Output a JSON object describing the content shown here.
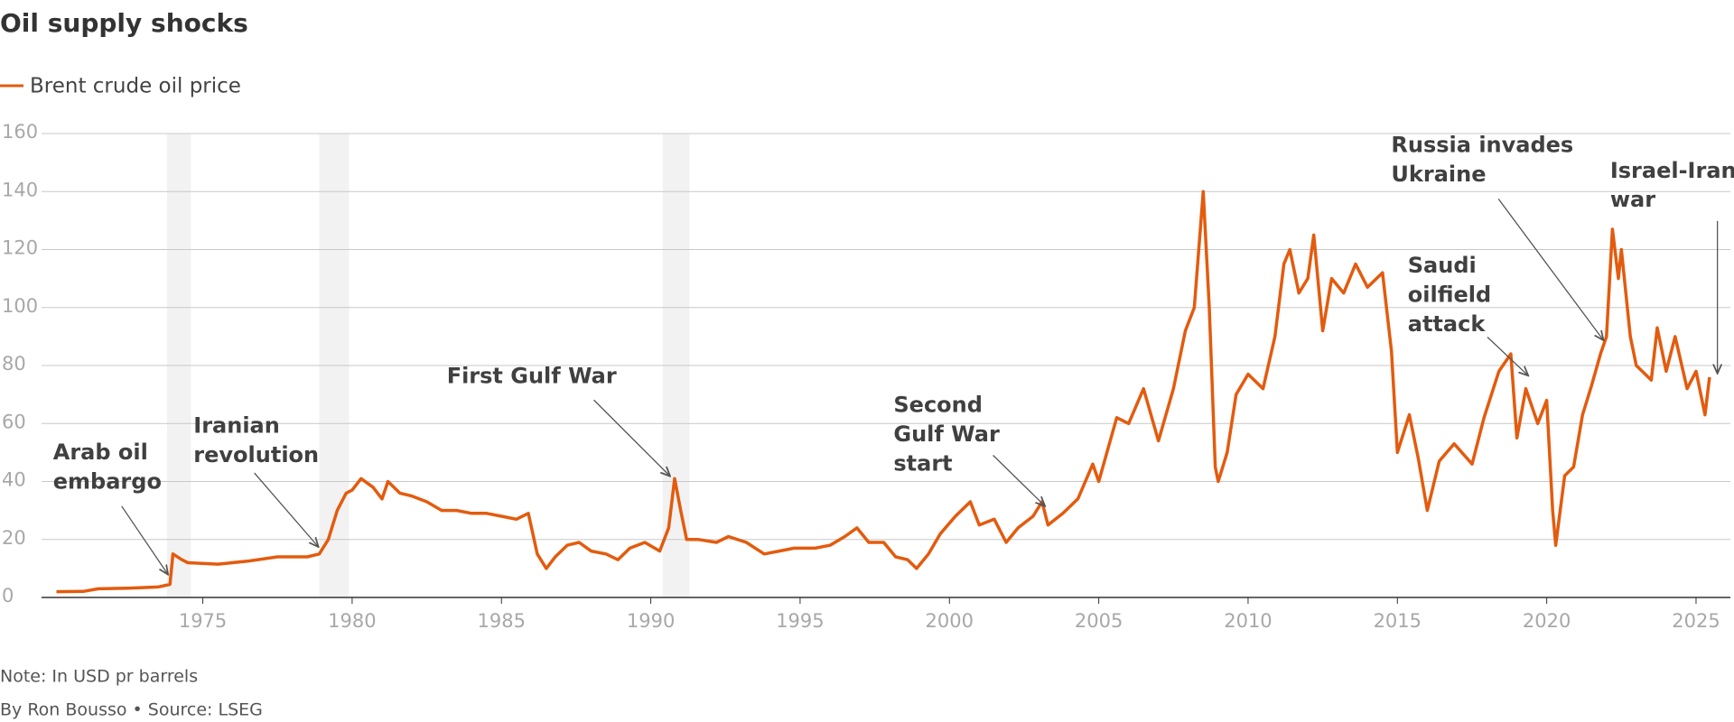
{
  "chart_data": {
    "type": "line",
    "title": "Oil supply shocks",
    "note": "Note: In USD pr barrels",
    "source": "By Ron Bousso • Source: LSEG",
    "xlim": [
      1969.6,
      2026.15
    ],
    "xticks": [
      1975,
      1980,
      1985,
      1990,
      1995,
      2000,
      2005,
      2010,
      2015,
      2020,
      2025
    ],
    "ylim": [
      0,
      160
    ],
    "yticks": [
      0,
      20,
      40,
      60,
      80,
      100,
      120,
      140,
      160
    ],
    "grid": true,
    "shaded_periods": [
      [
        1973.8,
        1974.6
      ],
      [
        1978.9,
        1979.9
      ],
      [
        1990.4,
        1991.3
      ]
    ],
    "annotations": [
      {
        "lines": [
          "Arab oil",
          "embargo"
        ]
      },
      {
        "lines": [
          "Iranian",
          "revolution"
        ]
      },
      {
        "lines": [
          "First Gulf War"
        ]
      },
      {
        "lines": [
          "Second",
          "Gulf War",
          "start"
        ]
      },
      {
        "lines": [
          "Saudi",
          "oilfield",
          "attack"
        ]
      },
      {
        "lines": [
          "Russia invades",
          "Ukraine"
        ]
      },
      {
        "lines": [
          "Israel-Iran",
          "war"
        ]
      }
    ],
    "x": [
      1970.1,
      1971.0,
      1971.5,
      1972.5,
      1973.5,
      1973.9,
      1974.0,
      1974.3,
      1974.5,
      1975.5,
      1976.5,
      1977.5,
      1978.5,
      1978.9,
      1979.2,
      1979.5,
      1979.8,
      1980.0,
      1980.3,
      1980.7,
      1981.0,
      1981.2,
      1981.6,
      1982.0,
      1982.5,
      1983.0,
      1983.5,
      1984.0,
      1984.5,
      1985.0,
      1985.5,
      1985.9,
      1986.2,
      1986.5,
      1986.8,
      1987.2,
      1987.6,
      1988.0,
      1988.5,
      1988.9,
      1989.3,
      1989.8,
      1990.3,
      1990.6,
      1990.8,
      1991.0,
      1991.2,
      1991.6,
      1992.2,
      1992.6,
      1993.2,
      1993.8,
      1994.3,
      1994.8,
      1995.5,
      1996.0,
      1996.5,
      1996.9,
      1997.3,
      1997.8,
      1998.2,
      1998.6,
      1998.9,
      1999.3,
      1999.7,
      2000.2,
      2000.7,
      2001.0,
      2001.5,
      2001.9,
      2002.3,
      2002.8,
      2003.1,
      2003.3,
      2003.8,
      2004.3,
      2004.8,
      2005.0,
      2005.6,
      2006.0,
      2006.5,
      2007.0,
      2007.5,
      2007.9,
      2008.2,
      2008.5,
      2008.7,
      2008.9,
      2009.0,
      2009.3,
      2009.6,
      2010.0,
      2010.5,
      2010.9,
      2011.2,
      2011.4,
      2011.7,
      2012.0,
      2012.2,
      2012.5,
      2012.8,
      2013.2,
      2013.6,
      2014.0,
      2014.5,
      2014.8,
      2015.0,
      2015.4,
      2015.7,
      2016.0,
      2016.4,
      2016.9,
      2017.5,
      2017.9,
      2018.4,
      2018.8,
      2019.0,
      2019.3,
      2019.7,
      2020.0,
      2020.2,
      2020.3,
      2020.6,
      2020.9,
      2021.2,
      2021.5,
      2021.8,
      2022.0,
      2022.2,
      2022.4,
      2022.5,
      2022.8,
      2023.0,
      2023.5,
      2023.7,
      2024.0,
      2024.3,
      2024.7,
      2025.0,
      2025.3,
      2025.45
    ],
    "series": [
      {
        "name": "Brent crude oil price",
        "color": "#e35b0e",
        "values": [
          2,
          2.1,
          3,
          3.2,
          3.6,
          4.5,
          15,
          13,
          12,
          11.5,
          12.5,
          14,
          14,
          15,
          20,
          30,
          36,
          37,
          41,
          38,
          34,
          40,
          36,
          35,
          33,
          30,
          30,
          29,
          29,
          28,
          27,
          29,
          15,
          10,
          14,
          18,
          19,
          16,
          15,
          13,
          17,
          19,
          16,
          24,
          41,
          30,
          20,
          20,
          19,
          21,
          19,
          15,
          16,
          17,
          17,
          18,
          21,
          24,
          19,
          19,
          14,
          13,
          10,
          15,
          22,
          28,
          33,
          25,
          27,
          19,
          24,
          28,
          33,
          25,
          29,
          34,
          46,
          40,
          62,
          60,
          72,
          54,
          72,
          92,
          100,
          140,
          100,
          45,
          40,
          50,
          70,
          77,
          72,
          90,
          115,
          120,
          105,
          110,
          125,
          92,
          110,
          105,
          115,
          107,
          112,
          85,
          50,
          63,
          48,
          30,
          47,
          53,
          46,
          62,
          78,
          84,
          55,
          72,
          60,
          68,
          30,
          18,
          42,
          45,
          63,
          73,
          84,
          90,
          127,
          110,
          120,
          90,
          80,
          75,
          93,
          78,
          90,
          72,
          78,
          63,
          76
        ]
      }
    ]
  }
}
